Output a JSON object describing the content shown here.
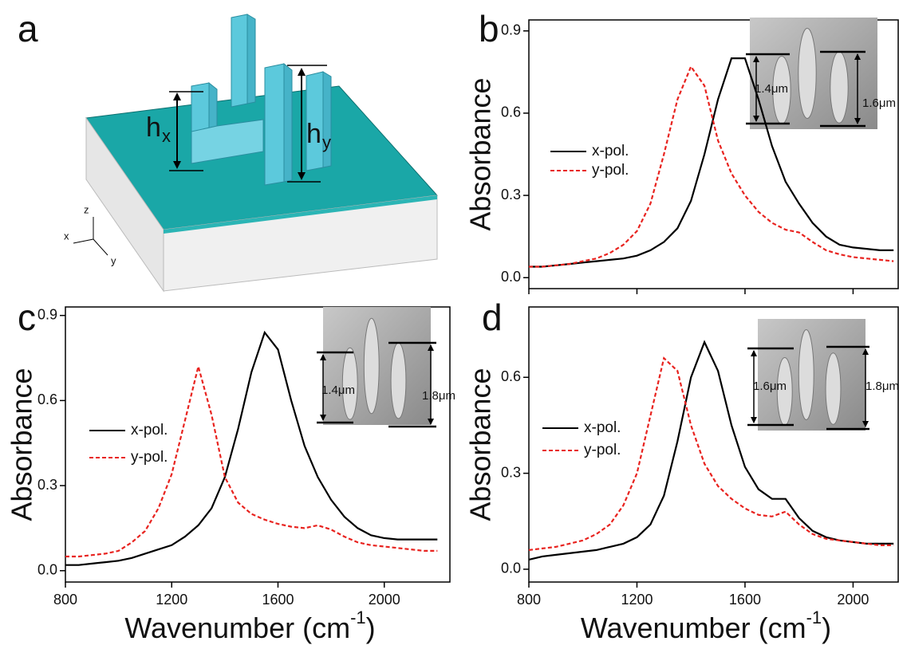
{
  "panel_a": {
    "label": "a",
    "heights": [
      {
        "symbol": "h",
        "subscript": "x"
      },
      {
        "symbol": "h",
        "subscript": "y"
      }
    ],
    "axes": [
      "x",
      "y",
      "z"
    ]
  },
  "chart_data": [
    {
      "type": "line",
      "panel_label": "b",
      "ylabel": "Absorbance",
      "x": [
        800,
        850,
        900,
        950,
        1000,
        1050,
        1100,
        1150,
        1200,
        1250,
        1300,
        1350,
        1400,
        1450,
        1500,
        1550,
        1600,
        1650,
        1700,
        1750,
        1800,
        1850,
        1900,
        1950,
        2000,
        2050,
        2100,
        2150
      ],
      "series": [
        {
          "name": "x-pol.",
          "color": "#000000",
          "dashed": false,
          "values": [
            0.04,
            0.04,
            0.045,
            0.05,
            0.055,
            0.06,
            0.065,
            0.07,
            0.08,
            0.1,
            0.13,
            0.18,
            0.28,
            0.45,
            0.65,
            0.8,
            0.8,
            0.65,
            0.48,
            0.35,
            0.27,
            0.2,
            0.15,
            0.12,
            0.11,
            0.105,
            0.1,
            0.1
          ]
        },
        {
          "name": "y-pol.",
          "color": "#e8231f",
          "dashed": true,
          "values": [
            0.04,
            0.04,
            0.045,
            0.05,
            0.06,
            0.07,
            0.09,
            0.12,
            0.17,
            0.27,
            0.45,
            0.65,
            0.77,
            0.7,
            0.5,
            0.38,
            0.3,
            0.24,
            0.2,
            0.175,
            0.165,
            0.13,
            0.1,
            0.085,
            0.075,
            0.07,
            0.065,
            0.06
          ]
        }
      ],
      "xlim": [
        800,
        2170
      ],
      "ylim": [
        -0.04,
        0.94
      ],
      "xticks": [
        800,
        1200,
        1600,
        2000
      ],
      "x_tick_labels": false,
      "yticks": [
        {
          "value": 0,
          "label": "0.0"
        },
        0.3,
        0.6,
        0.9
      ],
      "legend": "left",
      "annotations": [
        "1.4μm",
        "1.6μm"
      ]
    },
    {
      "type": "line",
      "panel_label": "c",
      "ylabel": "Absorbance",
      "xlabel": {
        "text": "Wavenumber (cm",
        "superscript": "-1",
        "suffix": ")"
      },
      "x": [
        800,
        850,
        900,
        950,
        1000,
        1050,
        1100,
        1150,
        1200,
        1250,
        1300,
        1350,
        1400,
        1450,
        1500,
        1550,
        1600,
        1650,
        1700,
        1750,
        1800,
        1850,
        1900,
        1950,
        2000,
        2050,
        2100,
        2150,
        2200
      ],
      "series": [
        {
          "name": "x-pol.",
          "color": "#000000",
          "dashed": false,
          "values": [
            0.02,
            0.02,
            0.025,
            0.03,
            0.035,
            0.045,
            0.06,
            0.075,
            0.09,
            0.12,
            0.16,
            0.22,
            0.33,
            0.5,
            0.7,
            0.84,
            0.78,
            0.6,
            0.44,
            0.33,
            0.25,
            0.19,
            0.15,
            0.125,
            0.115,
            0.11,
            0.11,
            0.11,
            0.11
          ]
        },
        {
          "name": "y-pol.",
          "color": "#e8231f",
          "dashed": true,
          "values": [
            0.05,
            0.05,
            0.055,
            0.06,
            0.07,
            0.1,
            0.14,
            0.22,
            0.34,
            0.53,
            0.72,
            0.55,
            0.33,
            0.24,
            0.2,
            0.18,
            0.165,
            0.155,
            0.15,
            0.16,
            0.145,
            0.12,
            0.1,
            0.09,
            0.085,
            0.08,
            0.075,
            0.07,
            0.07
          ]
        }
      ],
      "xlim": [
        800,
        2250
      ],
      "ylim": [
        -0.04,
        0.93
      ],
      "xticks": [
        800,
        1200,
        1600,
        2000
      ],
      "x_tick_labels": true,
      "yticks": [
        {
          "value": 0,
          "label": "0.0"
        },
        0.3,
        0.6,
        0.9
      ],
      "legend": "left",
      "annotations": [
        "1.4μm",
        "1.8μm"
      ]
    },
    {
      "type": "line",
      "panel_label": "d",
      "ylabel": "Absorbance",
      "xlabel": {
        "text": "Wavenumber (cm",
        "superscript": "-1",
        "suffix": ")"
      },
      "x": [
        800,
        850,
        900,
        950,
        1000,
        1050,
        1100,
        1150,
        1200,
        1250,
        1300,
        1350,
        1400,
        1450,
        1500,
        1550,
        1600,
        1650,
        1700,
        1750,
        1800,
        1850,
        1900,
        1950,
        2000,
        2050,
        2100,
        2150
      ],
      "series": [
        {
          "name": "x-pol.",
          "color": "#000000",
          "dashed": false,
          "values": [
            0.03,
            0.04,
            0.045,
            0.05,
            0.055,
            0.06,
            0.07,
            0.08,
            0.1,
            0.14,
            0.23,
            0.4,
            0.6,
            0.71,
            0.62,
            0.45,
            0.32,
            0.25,
            0.22,
            0.22,
            0.16,
            0.12,
            0.1,
            0.09,
            0.085,
            0.08,
            0.08,
            0.08
          ]
        },
        {
          "name": "y-pol.",
          "color": "#e8231f",
          "dashed": true,
          "values": [
            0.06,
            0.065,
            0.07,
            0.08,
            0.09,
            0.11,
            0.14,
            0.2,
            0.3,
            0.48,
            0.66,
            0.62,
            0.45,
            0.33,
            0.26,
            0.22,
            0.19,
            0.17,
            0.165,
            0.18,
            0.14,
            0.11,
            0.095,
            0.09,
            0.085,
            0.08,
            0.075,
            0.075
          ]
        }
      ],
      "xlim": [
        800,
        2170
      ],
      "ylim": [
        -0.04,
        0.82
      ],
      "xticks": [
        800,
        1200,
        1600,
        2000
      ],
      "x_tick_labels": true,
      "yticks": [
        {
          "value": 0,
          "label": "0.0"
        },
        0.3,
        0.6
      ],
      "legend": "left",
      "annotations": [
        "1.6μm",
        "1.8μm"
      ]
    }
  ]
}
